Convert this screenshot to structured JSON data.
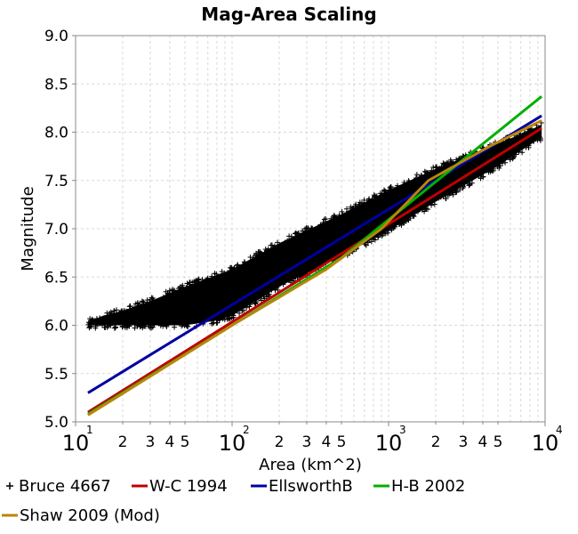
{
  "chart_data": {
    "type": "scatter",
    "title": "Mag-Area Scaling",
    "xlabel": "Area (km^2)",
    "ylabel": "Magnitude",
    "x_scale": "log",
    "xlim": [
      10,
      10000
    ],
    "ylim": [
      5.0,
      9.0
    ],
    "grid": true,
    "legend_position": "bottom",
    "x_major_ticks": [
      {
        "value": 10,
        "base": "10",
        "exp": "1"
      },
      {
        "value": 100,
        "base": "10",
        "exp": "2"
      },
      {
        "value": 1000,
        "base": "10",
        "exp": "3"
      },
      {
        "value": 10000,
        "base": "10",
        "exp": "4"
      }
    ],
    "x_minor_ticks": [
      {
        "value": 20,
        "label": "2"
      },
      {
        "value": 30,
        "label": "3"
      },
      {
        "value": 40,
        "label": "4"
      },
      {
        "value": 50,
        "label": "5"
      },
      {
        "value": 200,
        "label": "2"
      },
      {
        "value": 300,
        "label": "3"
      },
      {
        "value": 400,
        "label": "4"
      },
      {
        "value": 500,
        "label": "5"
      },
      {
        "value": 2000,
        "label": "2"
      },
      {
        "value": 3000,
        "label": "3"
      },
      {
        "value": 4000,
        "label": "4"
      },
      {
        "value": 5000,
        "label": "5"
      }
    ],
    "y_ticks": [
      5.0,
      5.5,
      6.0,
      6.5,
      7.0,
      7.5,
      8.0,
      8.5,
      9.0
    ],
    "y_tick_labels": [
      "5.0",
      "5.5",
      "6.0",
      "6.5",
      "7.0",
      "7.5",
      "8.0",
      "8.5",
      "9.0"
    ],
    "scatter_series": {
      "name": "Bruce 4667",
      "color": "#000000",
      "marker": "+",
      "band": [
        {
          "x": 12,
          "lower": 6.0,
          "upper": 6.03
        },
        {
          "x": 15,
          "lower": 6.0,
          "upper": 6.1
        },
        {
          "x": 20,
          "lower": 6.0,
          "upper": 6.15
        },
        {
          "x": 30,
          "lower": 6.0,
          "upper": 6.25
        },
        {
          "x": 50,
          "lower": 6.0,
          "upper": 6.4
        },
        {
          "x": 80,
          "lower": 6.05,
          "upper": 6.52
        },
        {
          "x": 100,
          "lower": 6.1,
          "upper": 6.58
        },
        {
          "x": 200,
          "lower": 6.4,
          "upper": 6.85
        },
        {
          "x": 500,
          "lower": 6.72,
          "upper": 7.15
        },
        {
          "x": 1000,
          "lower": 6.98,
          "upper": 7.4
        },
        {
          "x": 2000,
          "lower": 7.28,
          "upper": 7.62
        },
        {
          "x": 5000,
          "lower": 7.65,
          "upper": 7.88
        },
        {
          "x": 8000,
          "lower": 7.87,
          "upper": 8.02
        },
        {
          "x": 9500,
          "lower": 7.95,
          "upper": 8.08
        }
      ]
    },
    "series": [
      {
        "name": "W-C 1994",
        "color": "#c00000",
        "x": [
          12,
          9500
        ],
        "y": [
          5.1,
          8.04
        ]
      },
      {
        "name": "EllsworthB",
        "color": "#0000a0",
        "x": [
          12,
          9500
        ],
        "y": [
          5.3,
          8.17
        ]
      },
      {
        "name": "H-B 2002",
        "color": "#00b000",
        "x": [
          12,
          500,
          9500
        ],
        "y": [
          5.08,
          6.7,
          8.37
        ]
      },
      {
        "name": "Shaw 2009 (Mod)",
        "color": "#b8860b",
        "x": [
          12,
          100,
          400,
          900,
          1800,
          4500,
          9500
        ],
        "y": [
          5.07,
          6.0,
          6.58,
          7.0,
          7.5,
          7.86,
          8.12
        ]
      }
    ]
  }
}
